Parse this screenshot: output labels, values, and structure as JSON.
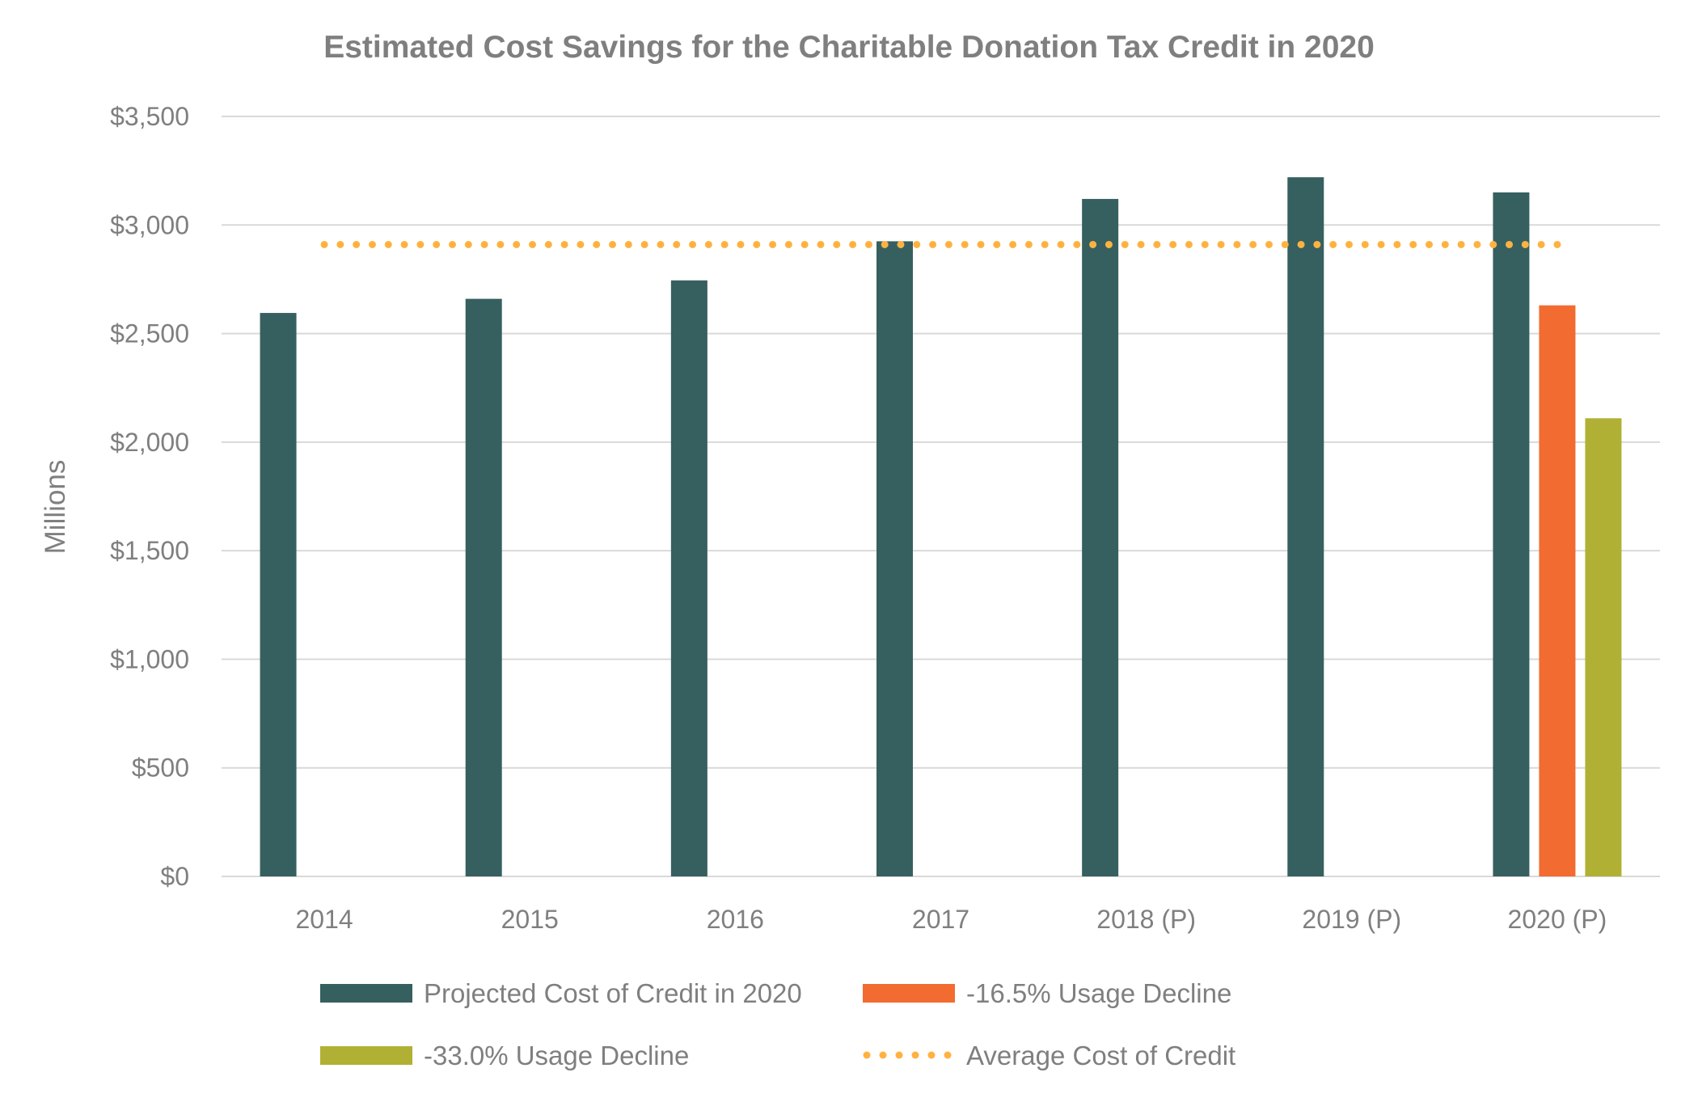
{
  "chart_data": {
    "type": "bar",
    "title": "Estimated Cost Savings for the Charitable Donation Tax Credit in 2020",
    "xlabel": "",
    "ylabel": "Millions",
    "ylim": [
      0,
      3500
    ],
    "yticks": [
      0,
      500,
      1000,
      1500,
      2000,
      2500,
      3000,
      3500
    ],
    "ytick_labels": [
      "$0",
      "$500",
      "$1,000",
      "$1,500",
      "$2,000",
      "$2,500",
      "$3,000",
      "$3,500"
    ],
    "grid": true,
    "categories": [
      "2014",
      "2015",
      "2016",
      "2017",
      "2018 (P)",
      "2019 (P)",
      "2020 (P)"
    ],
    "series": [
      {
        "name": "Projected Cost of Credit in 2020",
        "type": "bar",
        "color": "#36605f",
        "values": [
          2595,
          2660,
          2745,
          2925,
          3120,
          3220,
          3150
        ]
      },
      {
        "name": "-16.5% Usage Decline",
        "type": "bar",
        "color": "#f26b30",
        "values": [
          null,
          null,
          null,
          null,
          null,
          null,
          2630
        ]
      },
      {
        "name": "-33.0% Usage Decline",
        "type": "bar",
        "color": "#b0b034",
        "values": [
          null,
          null,
          null,
          null,
          null,
          null,
          2110
        ]
      },
      {
        "name": "Average Cost of Credit",
        "type": "line",
        "style": "dotted",
        "color": "#ffb240",
        "values": [
          2910,
          2910,
          2910,
          2910,
          2910,
          2910,
          2910
        ]
      }
    ],
    "legend": {
      "placement": "bottom",
      "order": [
        "Projected Cost of Credit in 2020",
        "-16.5% Usage Decline",
        "-33.0% Usage Decline",
        "Average Cost of Credit"
      ]
    }
  }
}
